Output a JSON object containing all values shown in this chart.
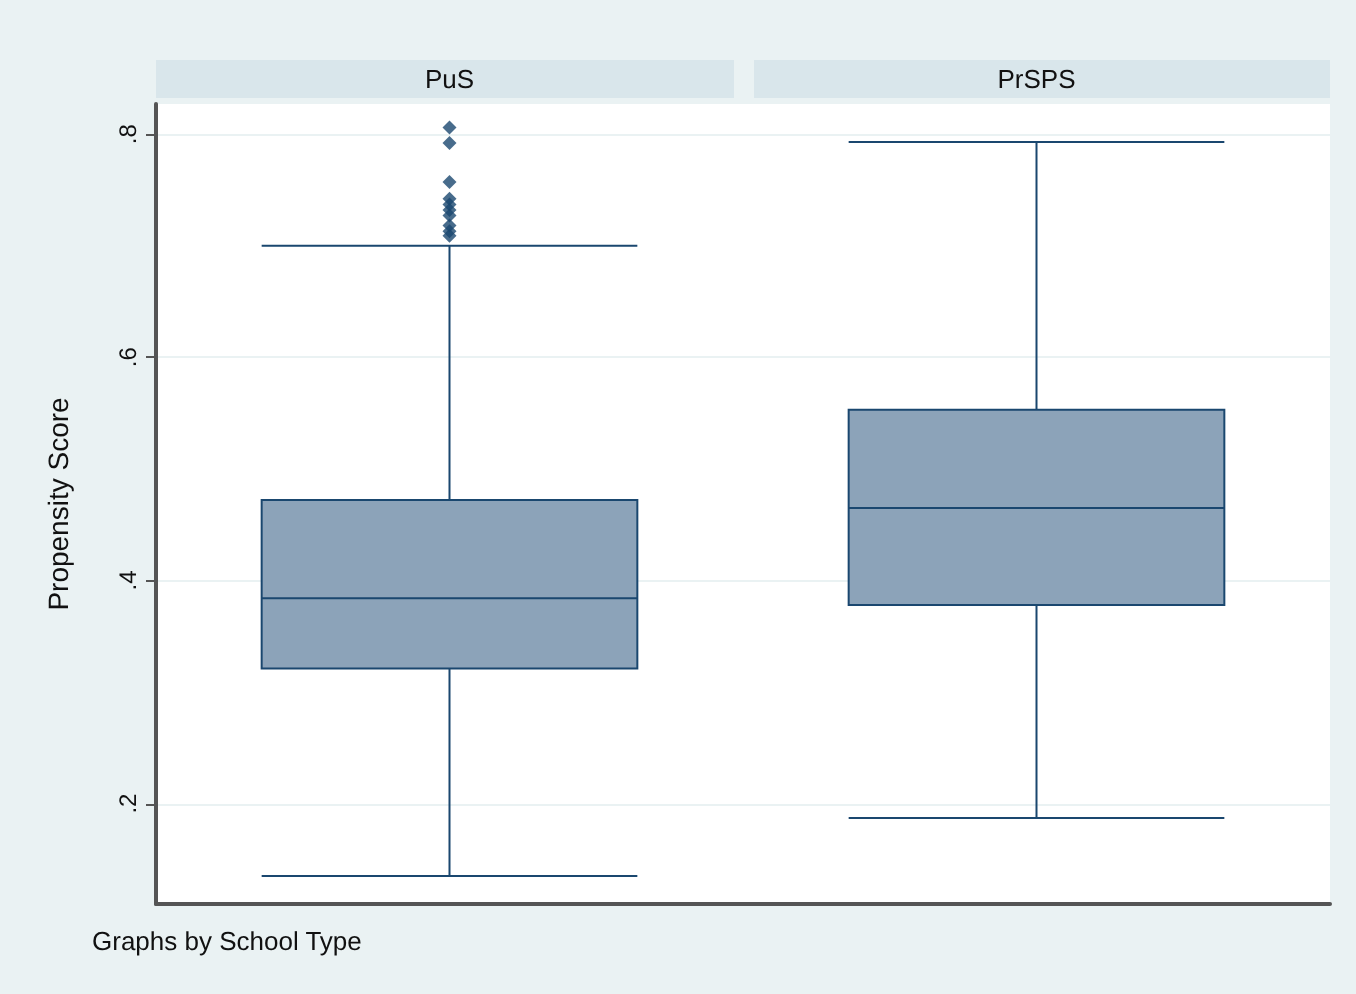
{
  "chart_data": {
    "type": "box",
    "ylabel": "Propensity Score",
    "categories": [
      "PuS",
      "PrSPS"
    ],
    "color": "#8ca3b9",
    "boxes": [
      {
        "low": 0.135,
        "q1": 0.321,
        "median": 0.384,
        "q3": 0.472,
        "high": 0.7,
        "outliers": [
          0.806,
          0.792,
          0.757,
          0.742,
          0.737,
          0.732,
          0.727,
          0.718,
          0.713,
          0.709
        ]
      },
      {
        "low": 0.187,
        "q1": 0.378,
        "median": 0.465,
        "q3": 0.553,
        "high": 0.793
      }
    ],
    "ylim": [
      0.11,
      0.827
    ],
    "yticks": [
      {
        "value": 0.2,
        "label": ".2"
      },
      {
        "value": 0.4,
        "label": ".4"
      },
      {
        "value": 0.6,
        "label": ".6"
      },
      {
        "value": 0.8,
        "label": ".8"
      }
    ],
    "grid": "y",
    "annotations": [
      "Graphs by School Type"
    ]
  }
}
